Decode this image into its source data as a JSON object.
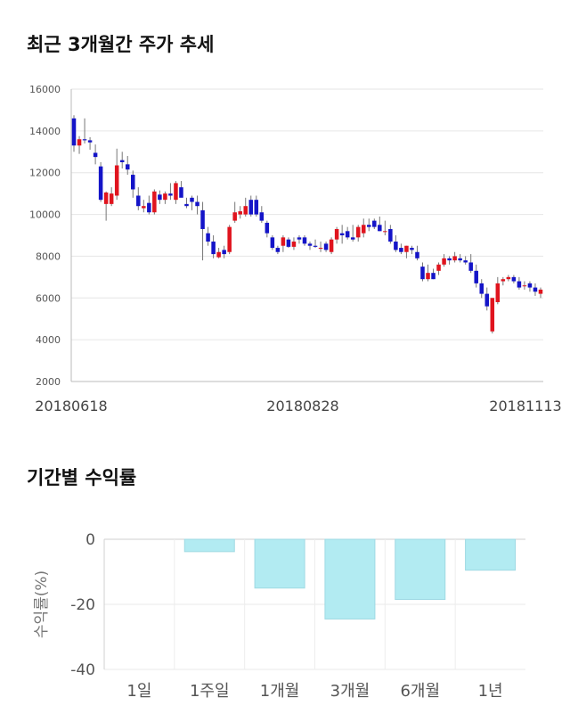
{
  "sections": {
    "price_title": "최근 3개월간 주가 추세",
    "return_title": "기간별 수익률"
  },
  "colors": {
    "up": "#e0141e",
    "down": "#1414c8",
    "bar_fill": "#b2ebf2",
    "bar_stroke": "#9fd9e3",
    "grid": "#e6e6e6"
  },
  "chart_data": [
    {
      "type": "candlestick",
      "title": "최근 3개월간 주가 추세",
      "ylim": [
        2000,
        16000
      ],
      "yticks": [
        "16000",
        "14000",
        "12000",
        "10000",
        "8000",
        "6000",
        "4000",
        "2000"
      ],
      "xticks": [
        "20180618",
        "20180828",
        "20181113"
      ],
      "grid": true,
      "candles": [
        [
          14600,
          14750,
          13000,
          13300
        ],
        [
          13300,
          13750,
          12900,
          13600
        ],
        [
          13600,
          14600,
          13400,
          13550
        ],
        [
          13550,
          13700,
          13100,
          13450
        ],
        [
          12950,
          13350,
          12400,
          12750
        ],
        [
          12300,
          12500,
          10600,
          10700
        ],
        [
          10500,
          11100,
          9700,
          11050
        ],
        [
          10500,
          11300,
          10400,
          11000
        ],
        [
          10900,
          13150,
          10700,
          12350
        ],
        [
          12600,
          13000,
          12200,
          12500
        ],
        [
          12400,
          12800,
          11900,
          12150
        ],
        [
          11900,
          12100,
          10800,
          11200
        ],
        [
          10900,
          11300,
          10200,
          10400
        ],
        [
          10300,
          10700,
          10100,
          10400
        ],
        [
          10550,
          10900,
          10000,
          10100
        ],
        [
          10100,
          11200,
          10000,
          11100
        ],
        [
          10950,
          11150,
          10500,
          10700
        ],
        [
          10700,
          11100,
          10500,
          11000
        ],
        [
          11000,
          11500,
          10700,
          10900
        ],
        [
          10700,
          11600,
          10500,
          11500
        ],
        [
          11300,
          11600,
          10900,
          10800
        ],
        [
          10500,
          10800,
          10300,
          10400
        ],
        [
          10800,
          10900,
          10200,
          10600
        ],
        [
          10600,
          10900,
          10000,
          10400
        ],
        [
          10200,
          10600,
          7800,
          9300
        ],
        [
          9100,
          9400,
          8500,
          8700
        ],
        [
          8700,
          9000,
          7900,
          8100
        ],
        [
          7950,
          8400,
          7900,
          8200
        ],
        [
          8300,
          8500,
          7900,
          8100
        ],
        [
          8200,
          9500,
          8100,
          9400
        ],
        [
          9700,
          10600,
          9600,
          10100
        ],
        [
          10000,
          10400,
          9800,
          10150
        ],
        [
          10000,
          10800,
          9900,
          10400
        ],
        [
          10700,
          10900,
          9900,
          10000
        ],
        [
          10700,
          10900,
          9900,
          10000
        ],
        [
          10100,
          10400,
          9600,
          9700
        ],
        [
          9600,
          9700,
          8900,
          9100
        ],
        [
          8900,
          9000,
          8300,
          8400
        ],
        [
          8400,
          8500,
          8100,
          8200
        ],
        [
          8500,
          9000,
          8200,
          8900
        ],
        [
          8800,
          8900,
          8400,
          8450
        ],
        [
          8450,
          8900,
          8300,
          8700
        ],
        [
          8900,
          9000,
          8600,
          8800
        ],
        [
          8900,
          9000,
          8500,
          8600
        ],
        [
          8600,
          8700,
          8300,
          8500
        ],
        [
          8500,
          8800,
          8400,
          8450
        ],
        [
          8400,
          8700,
          8200,
          8400
        ],
        [
          8600,
          8700,
          8200,
          8300
        ],
        [
          8200,
          8900,
          8100,
          8800
        ],
        [
          8800,
          9400,
          8600,
          9300
        ],
        [
          9100,
          9500,
          8600,
          9000
        ],
        [
          9200,
          9400,
          8800,
          8900
        ],
        [
          8900,
          9500,
          8700,
          8800
        ],
        [
          8900,
          9500,
          8700,
          9400
        ],
        [
          9100,
          9800,
          8900,
          9500
        ],
        [
          9500,
          9800,
          9200,
          9400
        ],
        [
          9700,
          9800,
          9300,
          9400
        ],
        [
          9500,
          9900,
          9200,
          9200
        ],
        [
          9200,
          9700,
          9000,
          9200
        ],
        [
          9300,
          9500,
          8600,
          8700
        ],
        [
          8700,
          9000,
          8200,
          8300
        ],
        [
          8400,
          8600,
          8100,
          8200
        ],
        [
          8200,
          8500,
          7900,
          8500
        ],
        [
          8400,
          8500,
          8100,
          8300
        ],
        [
          8200,
          8500,
          7800,
          7900
        ],
        [
          7500,
          7700,
          6800,
          6900
        ],
        [
          6900,
          7600,
          6800,
          7200
        ],
        [
          7200,
          7400,
          6900,
          6900
        ],
        [
          7300,
          7700,
          7100,
          7600
        ],
        [
          7600,
          8100,
          7500,
          7900
        ],
        [
          7900,
          8000,
          7600,
          7800
        ],
        [
          7800,
          8200,
          7700,
          8000
        ],
        [
          7900,
          8100,
          7700,
          7800
        ],
        [
          7800,
          8000,
          7600,
          7700
        ],
        [
          7700,
          8100,
          7200,
          7300
        ],
        [
          7300,
          7600,
          6500,
          6700
        ],
        [
          6700,
          6900,
          6000,
          6200
        ],
        [
          6200,
          6500,
          5400,
          5600
        ],
        [
          4400,
          6000,
          4300,
          6000
        ],
        [
          5800,
          7000,
          5700,
          6700
        ],
        [
          6800,
          7000,
          6600,
          6900
        ],
        [
          6900,
          7100,
          6800,
          7000
        ],
        [
          7000,
          7100,
          6700,
          6800
        ],
        [
          6800,
          7000,
          6400,
          6500
        ],
        [
          6600,
          6800,
          6400,
          6600
        ],
        [
          6700,
          6800,
          6300,
          6500
        ],
        [
          6500,
          6700,
          6100,
          6300
        ],
        [
          6200,
          6500,
          6000,
          6400
        ]
      ]
    },
    {
      "type": "bar",
      "title": "기간별 수익률",
      "ylabel": "수익률(%)",
      "ylim": [
        -40,
        0
      ],
      "yticks": [
        "0",
        "-20",
        "-40"
      ],
      "categories": [
        "1일",
        "1주일",
        "1개월",
        "3개월",
        "6개월",
        "1년"
      ],
      "values": [
        0,
        -3.8,
        -15,
        -24.5,
        -18.5,
        -9.5
      ],
      "grid": true
    }
  ]
}
